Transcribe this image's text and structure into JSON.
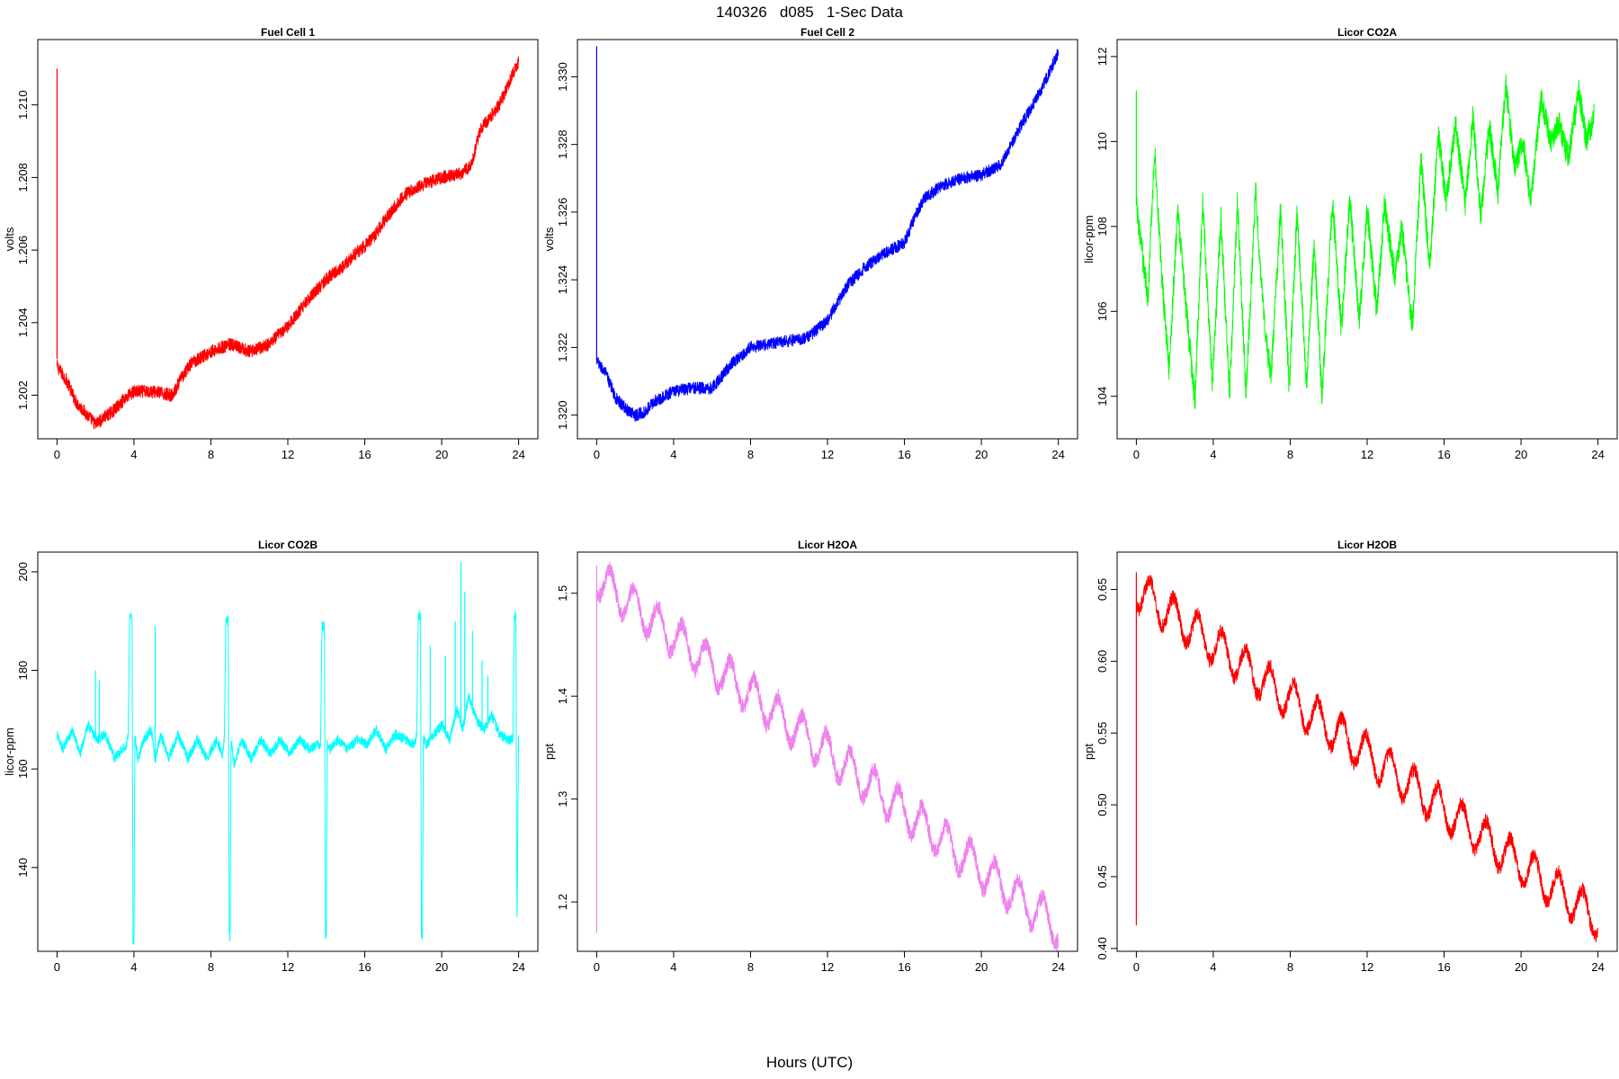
{
  "title": "140326   d085   1-Sec Data",
  "xlabel": "Hours (UTC)",
  "chart_data": [
    {
      "type": "line",
      "title": "Fuel Cell 1",
      "ylabel": "volts",
      "color": "#ff0000",
      "xlim": [
        -1,
        25
      ],
      "ylim": [
        1.2008,
        1.2118
      ],
      "xticks": [
        0,
        4,
        8,
        12,
        16,
        20,
        24
      ],
      "yticks": [
        1.202,
        1.204,
        1.206,
        1.208,
        1.21
      ],
      "ytick_labels": [
        "1.202",
        "1.204",
        "1.206",
        "1.208",
        "1.210"
      ],
      "noise": 0.00018,
      "spike": {
        "x": 0,
        "from": 1.203,
        "to": 1.211
      },
      "series": [
        {
          "x": [
            0,
            0.5,
            1,
            1.5,
            2,
            2.5,
            3,
            3.5,
            4,
            5,
            6,
            6.5,
            7,
            8,
            9,
            10,
            11,
            12,
            13,
            14,
            15,
            15.5,
            16,
            16.5,
            17,
            18,
            19,
            20,
            21,
            21.5,
            22,
            23,
            24
          ],
          "y": [
            1.2028,
            1.2024,
            1.2018,
            1.2015,
            1.2012,
            1.2014,
            1.2016,
            1.2019,
            1.2021,
            1.2021,
            1.202,
            1.2025,
            1.2029,
            1.2032,
            1.2034,
            1.2032,
            1.2034,
            1.2039,
            1.2046,
            1.2052,
            1.2056,
            1.2059,
            1.2061,
            1.2064,
            1.2068,
            1.2075,
            1.2078,
            1.208,
            1.2081,
            1.2083,
            1.2093,
            1.21,
            1.2112
          ]
        }
      ]
    },
    {
      "type": "line",
      "title": "Fuel Cell 2",
      "ylabel": "volts",
      "color": "#0000ff",
      "xlim": [
        -1,
        25
      ],
      "ylim": [
        1.3193,
        1.3311
      ],
      "xticks": [
        0,
        4,
        8,
        12,
        16,
        20,
        24
      ],
      "yticks": [
        1.32,
        1.322,
        1.324,
        1.326,
        1.328,
        1.33
      ],
      "ytick_labels": [
        "1.320",
        "1.322",
        "1.324",
        "1.326",
        "1.328",
        "1.330"
      ],
      "noise": 0.00018,
      "spike": {
        "x": 0,
        "from": 1.3216,
        "to": 1.3309
      },
      "series": [
        {
          "x": [
            0,
            0.5,
            1,
            1.5,
            2,
            2.5,
            3,
            4,
            5,
            6,
            7,
            8,
            9,
            10,
            11,
            12,
            13,
            14,
            15,
            16,
            16.5,
            17,
            18,
            19,
            20,
            21,
            22,
            23,
            24
          ],
          "y": [
            1.3216,
            1.3212,
            1.3205,
            1.3202,
            1.32,
            1.3201,
            1.3204,
            1.3207,
            1.3208,
            1.3208,
            1.3215,
            1.322,
            1.3221,
            1.3222,
            1.3223,
            1.3228,
            1.3238,
            1.3244,
            1.3248,
            1.3251,
            1.3258,
            1.3264,
            1.3268,
            1.327,
            1.3271,
            1.3274,
            1.3285,
            1.3295,
            1.3307
          ]
        }
      ]
    },
    {
      "type": "line",
      "title": "Licor CO2A",
      "ylabel": "licor-ppm",
      "color": "#00ff00",
      "xlim": [
        -1,
        25
      ],
      "ylim": [
        103.0,
        112.4
      ],
      "xticks": [
        0,
        4,
        8,
        12,
        16,
        20,
        24
      ],
      "yticks": [
        104,
        106,
        108,
        110,
        112
      ],
      "ytick_labels": [
        "104",
        "106",
        "108",
        "110",
        "112"
      ],
      "noise": 0.3,
      "spike": {
        "x": 0,
        "from": 108.5,
        "to": 111.2
      },
      "series": [
        {
          "x": [
            0,
            0.3,
            0.6,
            0.95,
            1.3,
            1.7,
            2.15,
            2.6,
            3.05,
            3.45,
            3.95,
            4.4,
            4.85,
            5.25,
            5.7,
            6.2,
            6.6,
            7.0,
            7.5,
            7.95,
            8.35,
            8.85,
            9.25,
            9.65,
            10.2,
            10.65,
            11.1,
            11.6,
            12.0,
            12.5,
            12.9,
            13.45,
            13.8,
            14.35,
            14.8,
            15.25,
            15.7,
            16.1,
            16.6,
            17.1,
            17.5,
            17.9,
            18.35,
            18.8,
            19.2,
            19.65,
            20.1,
            20.5,
            21.05,
            21.55,
            22.0,
            22.45,
            23.0,
            23.4,
            23.8
          ],
          "y": [
            108.5,
            107.4,
            106.3,
            109.8,
            107.0,
            104.6,
            108.4,
            106.0,
            103.9,
            108.6,
            104.3,
            108.2,
            104.0,
            108.6,
            104.0,
            108.8,
            106.0,
            104.4,
            108.4,
            104.2,
            108.3,
            104.3,
            107.6,
            104.0,
            108.6,
            105.6,
            108.6,
            105.8,
            108.4,
            106.0,
            108.5,
            106.8,
            108.0,
            105.6,
            109.6,
            107.0,
            110.2,
            108.6,
            110.4,
            108.5,
            110.6,
            108.2,
            110.4,
            108.8,
            111.4,
            109.4,
            110.0,
            108.6,
            111.0,
            110.0,
            110.4,
            109.6,
            111.2,
            110.0,
            110.6
          ]
        }
      ]
    },
    {
      "type": "line",
      "title": "Licor CO2B",
      "ylabel": "licor-ppm",
      "color": "#00ffff",
      "xlim": [
        -1,
        25
      ],
      "ylim": [
        123.0,
        204.0
      ],
      "xticks": [
        0,
        4,
        8,
        12,
        16,
        20,
        24
      ],
      "yticks": [
        140,
        160,
        180,
        200
      ],
      "ytick_labels": [
        "140",
        "160",
        "180",
        "200"
      ],
      "noise": 1.0,
      "series": [
        {
          "x": [
            0,
            0.3,
            0.8,
            1.2,
            1.6,
            2.1,
            2.5,
            3.0,
            3.6,
            3.7,
            3.78,
            3.9,
            3.95,
            4.0,
            4.05,
            4.2,
            4.5,
            4.9,
            5.1,
            5.4,
            5.8,
            6.3,
            6.8,
            7.3,
            7.8,
            8.3,
            8.6,
            8.7,
            8.78,
            8.9,
            8.95,
            9.0,
            9.05,
            9.2,
            9.6,
            10.1,
            10.6,
            11.1,
            11.6,
            12.1,
            12.6,
            13.1,
            13.6,
            13.7,
            13.78,
            13.9,
            13.95,
            14.0,
            14.05,
            14.2,
            14.6,
            15.1,
            15.6,
            16.1,
            16.6,
            17.1,
            17.6,
            18.1,
            18.6,
            18.7,
            18.78,
            18.9,
            18.95,
            19.0,
            19.05,
            19.2,
            19.6,
            20.0,
            20.4,
            20.8,
            21.1,
            21.4,
            21.8,
            22.2,
            22.6,
            23.0,
            23.4,
            23.6,
            23.7,
            23.78,
            23.85,
            23.92,
            24.0
          ],
          "y": [
            167,
            164,
            168,
            163,
            169,
            166,
            167,
            162,
            165,
            167,
            191,
            191,
            125,
            125,
            167,
            162,
            166,
            168,
            162,
            167,
            162,
            167,
            162,
            166,
            162,
            166,
            163,
            166,
            190,
            190,
            126,
            126,
            166,
            161,
            166,
            162,
            166,
            163,
            166,
            163,
            166,
            164,
            165,
            165,
            189,
            189,
            126,
            126,
            165,
            164,
            166,
            164,
            166,
            165,
            168,
            164,
            167,
            166,
            165,
            167,
            191,
            191,
            126,
            126,
            166,
            165,
            167,
            169,
            166,
            172,
            168,
            175,
            170,
            168,
            171,
            167,
            166,
            166,
            166,
            191,
            191,
            128,
            167
          ]
        }
      ],
      "spikes": [
        {
          "x": 2.0,
          "to": 180
        },
        {
          "x": 2.2,
          "to": 178
        },
        {
          "x": 5.1,
          "to": 189
        },
        {
          "x": 19.4,
          "to": 185
        },
        {
          "x": 20.2,
          "to": 183
        },
        {
          "x": 20.7,
          "to": 190
        },
        {
          "x": 21.0,
          "to": 202
        },
        {
          "x": 21.2,
          "to": 196
        },
        {
          "x": 21.6,
          "to": 188
        },
        {
          "x": 22.1,
          "to": 182
        },
        {
          "x": 22.4,
          "to": 179
        }
      ]
    },
    {
      "type": "line",
      "title": "Licor H2OA",
      "ylabel": "ppt",
      "color": "#ee82ee",
      "xlim": [
        -1,
        25
      ],
      "ylim": [
        1.152,
        1.54
      ],
      "xticks": [
        0,
        4,
        8,
        12,
        16,
        20,
        24
      ],
      "yticks": [
        1.2,
        1.3,
        1.4,
        1.5
      ],
      "ytick_labels": [
        "1.2",
        "1.3",
        "1.4",
        "1.5"
      ],
      "noise": 0.008,
      "spike": {
        "x": 0,
        "from": 1.17,
        "to": 1.527
      },
      "osc": {
        "amp": 0.018,
        "period": 1.25,
        "phase": 0.7
      },
      "series": [
        {
          "x": [
            0,
            24
          ],
          "y": [
            1.515,
            1.175
          ]
        }
      ]
    },
    {
      "type": "line",
      "title": "Licor H2OB",
      "ylabel": "ppt",
      "color": "#ff0000",
      "xlim": [
        -1,
        25
      ],
      "ylim": [
        0.398,
        0.676
      ],
      "xticks": [
        0,
        4,
        8,
        12,
        16,
        20,
        24
      ],
      "yticks": [
        0.4,
        0.45,
        0.5,
        0.55,
        0.6,
        0.65
      ],
      "ytick_labels": [
        "0.40",
        "0.45",
        "0.50",
        "0.55",
        "0.60",
        "0.65"
      ],
      "noise": 0.005,
      "spike": {
        "x": 0,
        "from": 0.416,
        "to": 0.662
      },
      "osc": {
        "amp": 0.013,
        "period": 1.25,
        "phase": 0.7
      },
      "series": [
        {
          "x": [
            0,
            24
          ],
          "y": [
            0.65,
            0.42
          ]
        }
      ]
    }
  ]
}
